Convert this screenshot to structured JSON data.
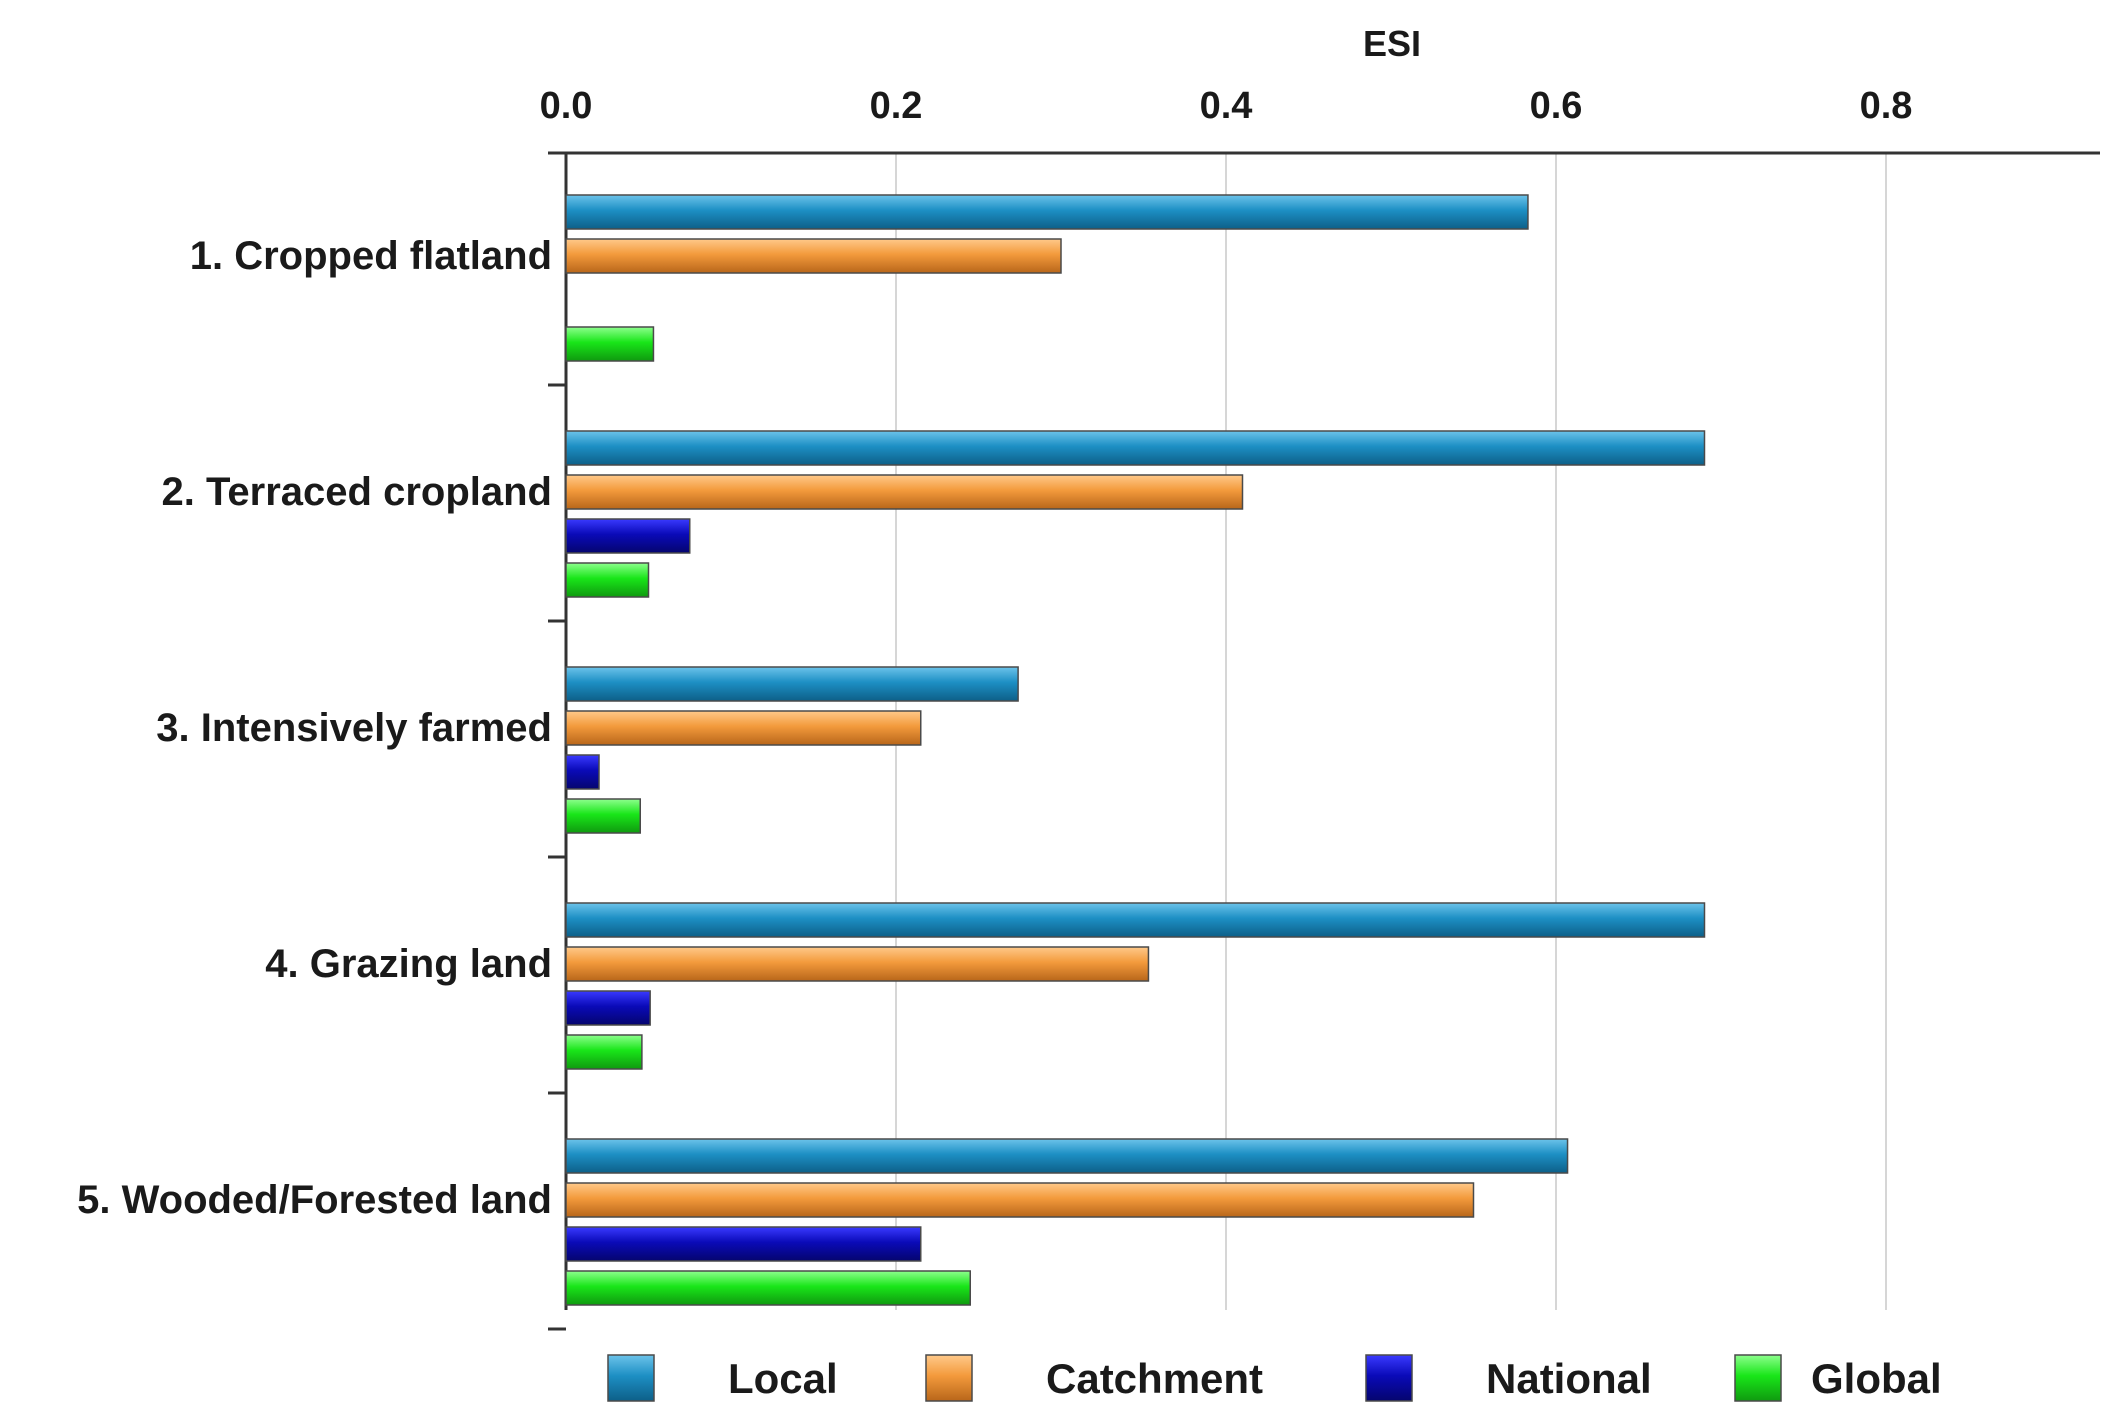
{
  "chart_data": {
    "type": "bar",
    "orientation": "horizontal",
    "title": "",
    "xlabel": "ESI",
    "ylabel": "",
    "xlim": [
      0,
      0.9
    ],
    "xticks": [
      0.0,
      0.2,
      0.4,
      0.6,
      0.8
    ],
    "xtick_labels": [
      "0.0",
      "0.2",
      "0.4",
      "0.6",
      "0.8"
    ],
    "x_axis_position": "top",
    "grid": "vertical",
    "legend_position": "bottom",
    "categories": [
      "1. Cropped flatland",
      "2. Terraced cropland",
      "3. Intensively farmed",
      "4. Grazing land",
      "5. Wooded/Forested land"
    ],
    "series": [
      {
        "name": "Local",
        "color": "#1d8fc4",
        "values": [
          0.583,
          0.69,
          0.274,
          0.69,
          0.607
        ]
      },
      {
        "name": "Catchment",
        "color": "#f39a3c",
        "values": [
          0.3,
          0.41,
          0.215,
          0.353,
          0.55
        ]
      },
      {
        "name": "National",
        "color": "#0a0ab8",
        "values": [
          0,
          0.075,
          0.02,
          0.051,
          0.215
        ]
      },
      {
        "name": "Global",
        "color": "#19e619",
        "values": [
          0.053,
          0.05,
          0.045,
          0.046,
          0.245
        ]
      }
    ]
  }
}
